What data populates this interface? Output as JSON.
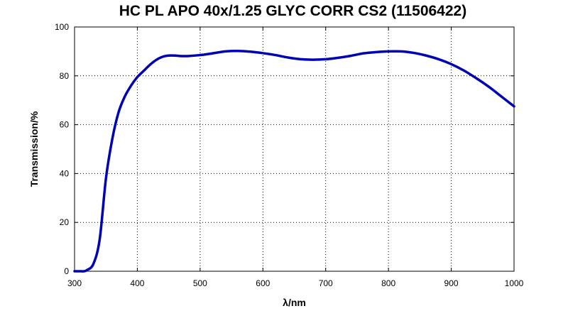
{
  "chart_data": {
    "type": "line",
    "title": "HC PL APO 40x/1.25 GLYC CORR CS2 (11506422)",
    "xlabel": "λ/nm",
    "ylabel": "Transmission/%",
    "xlim": [
      300,
      1000
    ],
    "ylim": [
      0,
      100
    ],
    "xticks": [
      300,
      400,
      500,
      600,
      700,
      800,
      900,
      1000
    ],
    "yticks": [
      0,
      20,
      40,
      60,
      80,
      100
    ],
    "grid": true,
    "legend": "none",
    "series": [
      {
        "color": "#0000b4",
        "x": [
          300,
          310,
          315,
          320,
          330,
          340,
          350,
          360,
          370,
          380,
          390,
          400,
          410,
          420,
          430,
          440,
          450,
          460,
          470,
          480,
          500,
          520,
          540,
          560,
          580,
          600,
          620,
          640,
          660,
          680,
          700,
          720,
          740,
          760,
          780,
          800,
          820,
          840,
          860,
          880,
          900,
          920,
          940,
          960,
          980,
          1000
        ],
        "y": [
          0,
          0,
          0,
          0.5,
          3,
          13,
          38,
          54,
          65,
          71.5,
          76,
          79.5,
          82,
          84.5,
          86.5,
          87.8,
          88.3,
          88.3,
          88.1,
          88.1,
          88.5,
          89.2,
          90,
          90.2,
          89.9,
          89.3,
          88.5,
          87.5,
          86.8,
          86.6,
          86.8,
          87.4,
          88.2,
          89.2,
          89.7,
          90,
          90,
          89.4,
          88.3,
          86.8,
          84.8,
          82.2,
          79,
          75.5,
          71.5,
          67.5
        ]
      }
    ]
  }
}
